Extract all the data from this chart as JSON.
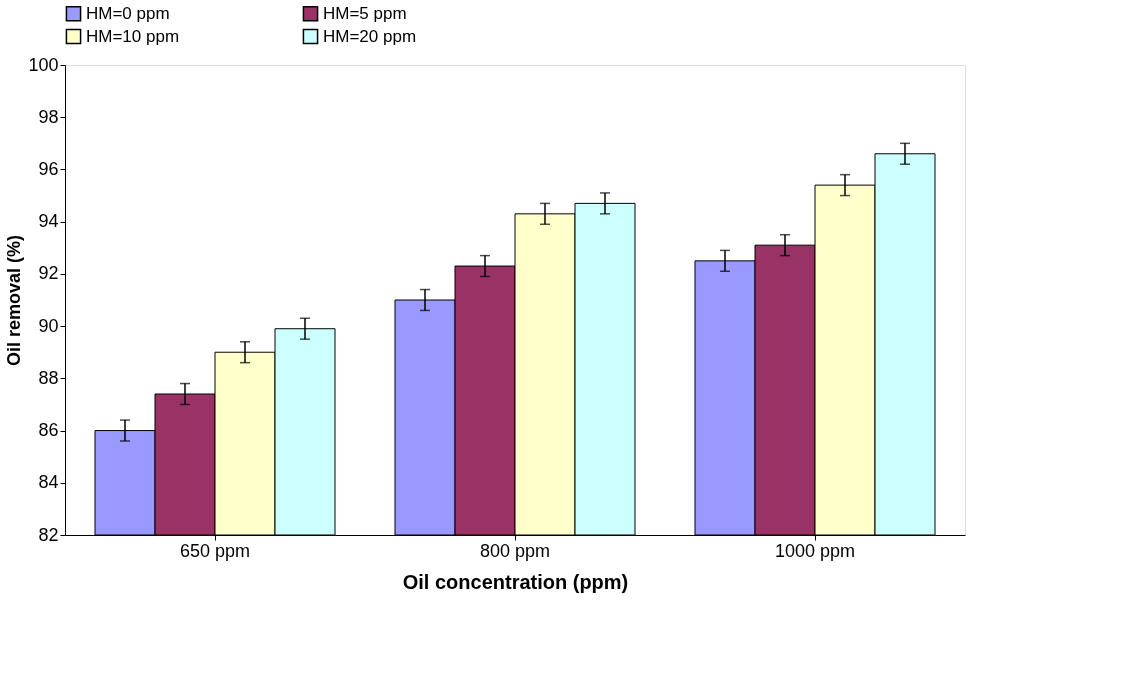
{
  "chart_data": {
    "type": "bar",
    "xlabel": "Oil concentration (ppm)",
    "ylabel": "Oil removal (%)",
    "categories": [
      "650 ppm",
      "800 ppm",
      "1000 ppm"
    ],
    "series": [
      {
        "name": "HM=0 ppm",
        "color": "#9999ff",
        "values": [
          86.0,
          91.0,
          92.5
        ],
        "errors": [
          0.4,
          0.4,
          0.4
        ]
      },
      {
        "name": "HM=5 ppm",
        "color": "#993366",
        "values": [
          87.4,
          92.3,
          93.1
        ],
        "errors": [
          0.4,
          0.4,
          0.4
        ]
      },
      {
        "name": "HM=10 ppm",
        "color": "#ffffcc",
        "values": [
          89.0,
          94.3,
          95.4
        ],
        "errors": [
          0.4,
          0.4,
          0.4
        ]
      },
      {
        "name": "HM=20 ppm",
        "color": "#ccffff",
        "values": [
          89.9,
          94.7,
          96.6
        ],
        "errors": [
          0.4,
          0.4,
          0.4
        ]
      }
    ],
    "ylim": [
      82,
      100
    ],
    "yticks": [
      82,
      84,
      86,
      88,
      90,
      92,
      94,
      96,
      98,
      100
    ],
    "grid": false,
    "legend": "top"
  }
}
